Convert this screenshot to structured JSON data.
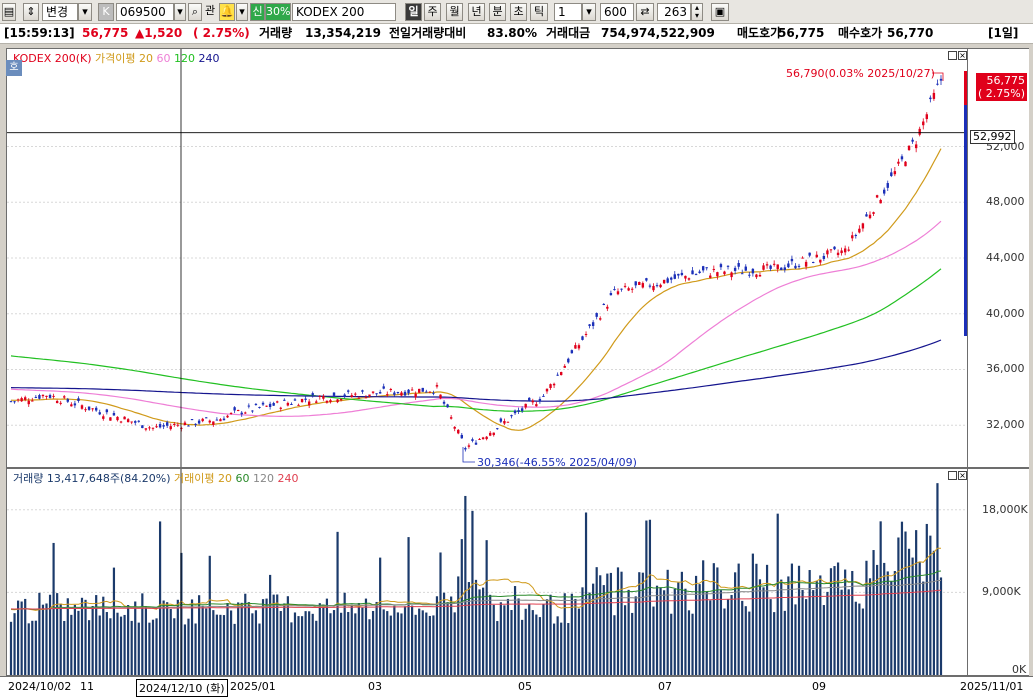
{
  "toolbar": {
    "mode_label": "변경",
    "code": "069500",
    "kwan_label": "관",
    "shin_label": "신",
    "shin_percent": "30%",
    "name": "KODEX 200",
    "periods": [
      "일",
      "주",
      "월",
      "년",
      "분",
      "초",
      "틱"
    ],
    "period_count": "1",
    "view_count": "600",
    "display_count": "263"
  },
  "infobar": {
    "time": "[15:59:13]",
    "price": "56,775",
    "change": "▲1,520",
    "change_pct": "( 2.75%)",
    "volume_label": "거래량",
    "volume": "13,354,219",
    "prev_ratio_label": "전일거래량대비",
    "prev_ratio": "83.80%",
    "amount_label": "거래대금",
    "amount": "754,974,522,909",
    "ask_label": "매도호가",
    "ask": "56,775",
    "bid_label": "매수호가",
    "bid": "56,770",
    "period_tag": "[1일]"
  },
  "price_panel": {
    "hoga_label": "호",
    "legend": {
      "name": "KODEX 200(K)",
      "ma_label": "가격이평",
      "ma20": "20",
      "ma60": "60",
      "ma120": "120",
      "ma240": "240"
    },
    "current_tag_price": "56,775",
    "current_tag_pct": "( 2.75%)",
    "cross_price": "52,992",
    "high_annotation": "56,790(0.03% 2025/10/27)",
    "low_annotation": "30,346(-46.55% 2025/04/09)",
    "colors": {
      "up": "#e0001b",
      "down": "#1b2fb8",
      "ma20": "#d09a1a",
      "ma60": "#ee7fd6",
      "ma120": "#22c022",
      "ma240": "#15158e"
    }
  },
  "volume_panel": {
    "legend": {
      "label": "거래량",
      "value": "13,417,648주(84.20%)",
      "ma_label": "거래이평",
      "ma20": "20",
      "ma60": "60",
      "ma120": "120",
      "ma240": "240"
    }
  },
  "xaxis": {
    "current_date": "2024/12/10 (화)"
  },
  "chart_data": [
    {
      "type": "candlestick",
      "title": "KODEX 200(K)",
      "x": [
        "2024/10/02",
        "11",
        "2025/01",
        "03",
        "05",
        "07",
        "09",
        "2025/11/01"
      ],
      "x_tick_labels": [
        "2024/10/02",
        "11",
        "2025/01",
        "03",
        "05",
        "07",
        "09",
        "2025/11/01"
      ],
      "y_tick_labels": [
        "32,000",
        "36,000",
        "40,000",
        "44,000",
        "48,000",
        "52,000"
      ],
      "ylim": [
        29000,
        59000
      ],
      "close_anchors": [
        {
          "x": "2024/10/02",
          "y": 33700
        },
        {
          "x": "2024/10",
          "y": 34200
        },
        {
          "x": "2024/11",
          "y": 31800
        },
        {
          "x": "2024/12",
          "y": 32400
        },
        {
          "x": "2025/01",
          "y": 33000
        },
        {
          "x": "2025/02",
          "y": 34000
        },
        {
          "x": "2025/03",
          "y": 34600
        },
        {
          "x": "2025/04/09",
          "y": 30346
        },
        {
          "x": "2025/05",
          "y": 34100
        },
        {
          "x": "2025/06",
          "y": 41500
        },
        {
          "x": "2025/07",
          "y": 43000
        },
        {
          "x": "2025/08",
          "y": 43200
        },
        {
          "x": "2025/09",
          "y": 44500
        },
        {
          "x": "2025/10",
          "y": 52500
        },
        {
          "x": "2025/10/27",
          "y": 56775
        }
      ],
      "series": [
        {
          "name": "20"
        },
        {
          "name": "60"
        },
        {
          "name": "120"
        },
        {
          "name": "240"
        }
      ]
    },
    {
      "type": "bar",
      "title": "거래량",
      "y_tick_labels": [
        "0K",
        "9,000K",
        "18,000K"
      ],
      "ylim": [
        0,
        22000
      ]
    }
  ]
}
